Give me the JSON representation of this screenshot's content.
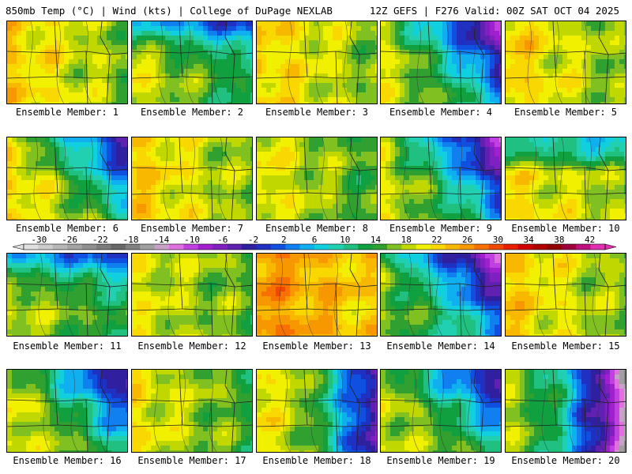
{
  "header": {
    "left": "850mb Temp (°C) | Wind (kts) | College of DuPage NEXLAB",
    "right": "12Z GEFS | F276 Valid: 00Z SAT OCT 04 2025"
  },
  "panel_label_prefix": "Ensemble Member: ",
  "members": [
    {
      "number": "1",
      "label": "Ensemble Member: 1",
      "base": 22,
      "west_gradient": 6,
      "cold_corner": "none"
    },
    {
      "number": "2",
      "label": "Ensemble Member: 2",
      "base": 18,
      "west_gradient": 8,
      "cold_corner": "top"
    },
    {
      "number": "3",
      "label": "Ensemble Member: 3",
      "base": 22,
      "west_gradient": 6,
      "cold_corner": "none"
    },
    {
      "number": "4",
      "label": "Ensemble Member: 4",
      "base": 16,
      "west_gradient": 10,
      "cold_corner": "top-right"
    },
    {
      "number": "5",
      "label": "Ensemble Member: 5",
      "base": 22,
      "west_gradient": 6,
      "cold_corner": "none"
    },
    {
      "number": "6",
      "label": "Ensemble Member: 6",
      "base": 20,
      "west_gradient": 8,
      "cold_corner": "top-right"
    },
    {
      "number": "7",
      "label": "Ensemble Member: 7",
      "base": 22,
      "west_gradient": 6,
      "cold_corner": "none"
    },
    {
      "number": "8",
      "label": "Ensemble Member: 8",
      "base": 20,
      "west_gradient": 6,
      "cold_corner": "none"
    },
    {
      "number": "9",
      "label": "Ensemble Member: 9",
      "base": 16,
      "west_gradient": 10,
      "cold_corner": "top-right"
    },
    {
      "number": "10",
      "label": "Ensemble Member: 10",
      "base": 22,
      "west_gradient": 4,
      "cold_corner": "top"
    },
    {
      "number": "11",
      "label": "Ensemble Member: 11",
      "base": 18,
      "west_gradient": 6,
      "cold_corner": "top"
    },
    {
      "number": "12",
      "label": "Ensemble Member: 12",
      "base": 20,
      "west_gradient": 4,
      "cold_corner": "none"
    },
    {
      "number": "13",
      "label": "Ensemble Member: 13",
      "base": 27,
      "west_gradient": 4,
      "cold_corner": "none"
    },
    {
      "number": "14",
      "label": "Ensemble Member: 14",
      "base": 14,
      "west_gradient": 8,
      "cold_corner": "top-right"
    },
    {
      "number": "15",
      "label": "Ensemble Member: 15",
      "base": 22,
      "west_gradient": 6,
      "cold_corner": "none"
    },
    {
      "number": "16",
      "label": "Ensemble Member: 16",
      "base": 18,
      "west_gradient": 8,
      "cold_corner": "top-right"
    },
    {
      "number": "17",
      "label": "Ensemble Member: 17",
      "base": 20,
      "west_gradient": 6,
      "cold_corner": "none"
    },
    {
      "number": "18",
      "label": "Ensemble Member: 18",
      "base": 18,
      "west_gradient": 10,
      "cold_corner": "right"
    },
    {
      "number": "19",
      "label": "Ensemble Member: 19",
      "base": 18,
      "west_gradient": 6,
      "cold_corner": "top-right"
    },
    {
      "number": "20",
      "label": "Ensemble Member: 20",
      "base": 12,
      "west_gradient": 14,
      "cold_corner": "right"
    }
  ],
  "colorbar": {
    "unit": "°C",
    "tick_labels": [
      "-30",
      "-26",
      "-22",
      "-18",
      "-14",
      "-10",
      "-6",
      "-2",
      "2",
      "6",
      "10",
      "14",
      "18",
      "22",
      "26",
      "30",
      "34",
      "38",
      "42"
    ],
    "range": [
      -32,
      44
    ],
    "step": 2,
    "colors": [
      "#e0e0e0",
      "#cccccc",
      "#b8b8b8",
      "#a4a4a4",
      "#909090",
      "#7c7c7c",
      "#686868",
      "#808080",
      "#a0a0a0",
      "#c8a0c8",
      "#e070e0",
      "#c040e0",
      "#a020d0",
      "#8020c0",
      "#6020b0",
      "#3020a0",
      "#2030c0",
      "#1050e0",
      "#1080f0",
      "#10b0f0",
      "#10d0e0",
      "#20d0b0",
      "#20c080",
      "#10a040",
      "#30a030",
      "#80c020",
      "#c0d800",
      "#f0f000",
      "#f8d800",
      "#f8b800",
      "#f89800",
      "#f87000",
      "#f04800",
      "#e82000",
      "#d00000",
      "#b00000",
      "#900000",
      "#a00040",
      "#c01080",
      "#e030b0"
    ]
  }
}
